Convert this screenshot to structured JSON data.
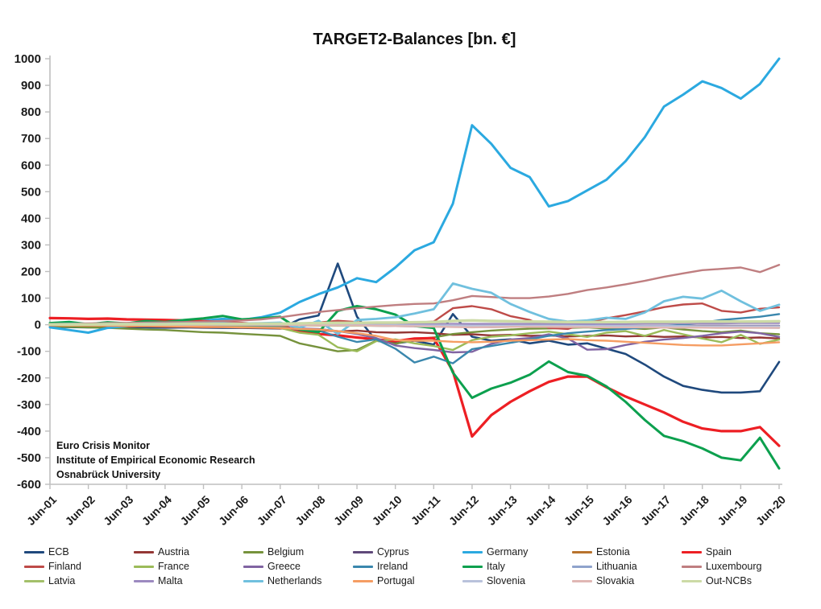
{
  "title": "TARGET2-Balances [bn. €]",
  "annotation": {
    "lines": [
      "Euro Crisis Monitor",
      "Institute of Empirical Economic Research",
      "Osnabrück University"
    ]
  },
  "axis": {
    "y_tick_labels": [
      "1000",
      "900",
      "800",
      "700",
      "600",
      "500",
      "400",
      "300",
      "200",
      "100",
      "0",
      "-100",
      "-200",
      "-300",
      "-400",
      "-500",
      "-600"
    ],
    "x_tick_labels": [
      "Jun-01",
      "Jun-02",
      "Jun-03",
      "Jun-04",
      "Jun-05",
      "Jun-06",
      "Jun-07",
      "Jun-08",
      "Jun-09",
      "Jun-10",
      "Jun-11",
      "Jun-12",
      "Jun-13",
      "Jun-14",
      "Jun-15",
      "Jun-16",
      "Jun-17",
      "Jun-18",
      "Jun-19",
      "Jun-20"
    ],
    "axis_color": "#bfbfbf",
    "label_color": "#1a1a1a"
  },
  "chart_data": {
    "type": "line",
    "title": "TARGET2-Balances [bn. €]",
    "ylabel": "",
    "xlabel": "",
    "ylim": [
      -600,
      1000
    ],
    "y_ticks": [
      1000,
      900,
      800,
      700,
      600,
      500,
      400,
      300,
      200,
      100,
      0,
      -100,
      -200,
      -300,
      -400,
      -500,
      -600
    ],
    "grid": false,
    "legend_position": "bottom, 7 columns x 3 rows",
    "x_note": "half-yearly points from Jun-2001 to Jun-2020; labeled ticks at every June",
    "x_tick_labels": [
      "Jun-01",
      "Jun-02",
      "Jun-03",
      "Jun-04",
      "Jun-05",
      "Jun-06",
      "Jun-07",
      "Jun-08",
      "Jun-09",
      "Jun-10",
      "Jun-11",
      "Jun-12",
      "Jun-13",
      "Jun-14",
      "Jun-15",
      "Jun-16",
      "Jun-17",
      "Jun-18",
      "Jun-19",
      "Jun-20"
    ],
    "series": [
      {
        "name": "ECB",
        "color": "#1F497D",
        "values": [
          -8,
          -9,
          -10,
          -9,
          -10,
          -10,
          -11,
          -10,
          -11,
          -12,
          -12,
          -13,
          -14,
          20,
          35,
          230,
          30,
          -60,
          -70,
          -60,
          -75,
          40,
          -45,
          -60,
          -55,
          -70,
          -60,
          -75,
          -70,
          -90,
          -110,
          -150,
          -195,
          -230,
          -245,
          -255,
          -255,
          -250,
          -140
        ]
      },
      {
        "name": "Austria",
        "color": "#943735",
        "values": [
          -4,
          -5,
          -6,
          -5,
          -7,
          -6,
          -8,
          -8,
          -10,
          -9,
          -11,
          -12,
          -14,
          -18,
          -20,
          -25,
          -22,
          -28,
          -30,
          -28,
          -32,
          -38,
          -36,
          -40,
          -38,
          -42,
          -40,
          -44,
          -42,
          -40,
          -44,
          -42,
          -46,
          -44,
          -48,
          -46,
          -50,
          -48,
          -52
        ]
      },
      {
        "name": "Belgium",
        "color": "#76923C",
        "values": [
          -6,
          -8,
          -10,
          -12,
          -15,
          -18,
          -20,
          -24,
          -28,
          -30,
          -34,
          -38,
          -42,
          -70,
          -85,
          -100,
          -95,
          -60,
          -72,
          -55,
          -48,
          -35,
          -28,
          -22,
          -18,
          -15,
          -14,
          -12,
          -10,
          -14,
          -12,
          -16,
          -10,
          -18,
          -24,
          -28,
          -22,
          -32,
          -36
        ]
      },
      {
        "name": "Cyprus",
        "color": "#5F497A",
        "values": [
          0,
          0,
          0,
          0,
          0,
          0,
          0,
          0,
          0,
          0,
          0,
          0,
          0,
          -1,
          -2,
          -3,
          -3,
          -4,
          -5,
          -6,
          -7,
          -8,
          -8,
          -9,
          -8,
          -7,
          -6,
          -5,
          -5,
          -4,
          -4,
          -4,
          -4,
          -4,
          -4,
          -4,
          -4,
          -4,
          -4
        ]
      },
      {
        "name": "Germany",
        "color": "#2BA9E0",
        "values": [
          -10,
          -20,
          -30,
          -12,
          -5,
          3,
          8,
          5,
          15,
          22,
          18,
          28,
          45,
          85,
          115,
          140,
          175,
          160,
          215,
          280,
          310,
          455,
          750,
          680,
          590,
          555,
          445,
          465,
          505,
          545,
          615,
          705,
          820,
          865,
          915,
          890,
          850,
          905,
          1000
        ]
      },
      {
        "name": "Estonia",
        "color": "#B8732D",
        "values": [
          0,
          0,
          0,
          0,
          -1,
          -1,
          -1,
          -1,
          -1,
          -2,
          -2,
          -2,
          -2,
          -2,
          -3,
          -3,
          -3,
          -3,
          -3,
          -4,
          -4,
          -4,
          -4,
          -4,
          -4,
          -4,
          -5,
          -5,
          -5,
          -5,
          -5,
          -6,
          -6,
          -6,
          -6,
          -6,
          -6,
          -7,
          -7
        ]
      },
      {
        "name": "Spain",
        "color": "#ED1F24",
        "values": [
          25,
          24,
          22,
          23,
          20,
          19,
          18,
          16,
          13,
          10,
          6,
          2,
          0,
          -25,
          -35,
          -40,
          -48,
          -55,
          -62,
          -52,
          -50,
          -175,
          -420,
          -340,
          -290,
          -250,
          -215,
          -195,
          -195,
          -235,
          -270,
          -300,
          -330,
          -365,
          -390,
          -400,
          -400,
          -385,
          -455
        ]
      },
      {
        "name": "Finland",
        "color": "#BE4B48",
        "values": [
          -3,
          -3,
          -4,
          -3,
          -4,
          -4,
          -5,
          -4,
          -5,
          -5,
          -6,
          -5,
          -6,
          5,
          8,
          15,
          10,
          5,
          2,
          8,
          12,
          62,
          70,
          58,
          32,
          18,
          -12,
          -16,
          8,
          24,
          36,
          50,
          66,
          76,
          80,
          52,
          46,
          60,
          65
        ]
      },
      {
        "name": "France",
        "color": "#9BBB59",
        "values": [
          -2,
          -3,
          -3,
          -4,
          -4,
          -5,
          -5,
          -6,
          -6,
          -8,
          -8,
          -10,
          -12,
          -30,
          -38,
          -85,
          -100,
          -62,
          -55,
          -70,
          -80,
          -95,
          -58,
          -45,
          -40,
          -32,
          -26,
          -36,
          -46,
          -30,
          -24,
          -42,
          -20,
          -36,
          -52,
          -66,
          -38,
          -72,
          -56
        ]
      },
      {
        "name": "Greece",
        "color": "#8064A2",
        "values": [
          -1,
          -2,
          -2,
          -3,
          -3,
          -4,
          -4,
          -5,
          -5,
          -6,
          -6,
          -8,
          -10,
          -14,
          -16,
          -24,
          -35,
          -50,
          -78,
          -88,
          -95,
          -104,
          -102,
          -72,
          -56,
          -50,
          -36,
          -52,
          -94,
          -92,
          -76,
          -64,
          -56,
          -50,
          -42,
          -32,
          -26,
          -32,
          -46
        ]
      },
      {
        "name": "Ireland",
        "color": "#3A87AD",
        "values": [
          -2,
          -2,
          -3,
          -3,
          -4,
          -4,
          -5,
          -5,
          -6,
          -6,
          -7,
          -8,
          -10,
          -18,
          -22,
          -45,
          -65,
          -55,
          -90,
          -142,
          -120,
          -145,
          -92,
          -80,
          -68,
          -55,
          -42,
          -32,
          -26,
          -20,
          -16,
          -10,
          -6,
          0,
          8,
          18,
          24,
          30,
          40
        ]
      },
      {
        "name": "Italy",
        "color": "#0CA04E",
        "values": [
          6,
          10,
          2,
          9,
          5,
          14,
          10,
          18,
          24,
          33,
          20,
          24,
          30,
          -18,
          -28,
          52,
          70,
          58,
          38,
          -5,
          -12,
          -180,
          -275,
          -240,
          -218,
          -188,
          -138,
          -178,
          -192,
          -232,
          -290,
          -358,
          -418,
          -438,
          -465,
          -500,
          -510,
          -425,
          -540
        ]
      },
      {
        "name": "Lithuania",
        "color": "#8FA3CC",
        "values": [
          0,
          0,
          0,
          0,
          0,
          0,
          0,
          0,
          0,
          0,
          0,
          0,
          0,
          0,
          -1,
          -1,
          -1,
          -1,
          -1,
          -1,
          -1,
          -1,
          -2,
          -2,
          -2,
          -2,
          -2,
          -2,
          -3,
          -4,
          -5,
          -6,
          -7,
          -8,
          -9,
          -10,
          -10,
          -11,
          -12
        ]
      },
      {
        "name": "Luxembourg",
        "color": "#BF7E80",
        "values": [
          3,
          4,
          5,
          6,
          7,
          8,
          9,
          10,
          12,
          14,
          16,
          20,
          28,
          38,
          48,
          55,
          62,
          68,
          74,
          78,
          80,
          92,
          108,
          104,
          100,
          100,
          106,
          116,
          130,
          140,
          152,
          165,
          180,
          193,
          205,
          210,
          215,
          198,
          225
        ]
      },
      {
        "name": "Latvia",
        "color": "#A3C06A",
        "values": [
          0,
          0,
          0,
          0,
          0,
          -1,
          -1,
          -1,
          -1,
          -1,
          -2,
          -2,
          -2,
          -3,
          -3,
          -4,
          -4,
          -4,
          -4,
          -5,
          -5,
          -5,
          -6,
          -6,
          -6,
          -6,
          -6,
          -7,
          -7,
          -7,
          -7,
          -7,
          -8,
          -8,
          -8,
          -8,
          -8,
          -8,
          -8
        ]
      },
      {
        "name": "Malta",
        "color": "#9C8AC0",
        "values": [
          0,
          0,
          0,
          0,
          0,
          0,
          0,
          0,
          0,
          0,
          0,
          0,
          0,
          0,
          1,
          1,
          1,
          1,
          2,
          2,
          2,
          3,
          3,
          3,
          3,
          3,
          4,
          4,
          4,
          4,
          4,
          5,
          5,
          5,
          5,
          5,
          6,
          6,
          6
        ]
      },
      {
        "name": "Netherlands",
        "color": "#70C0DE",
        "values": [
          2,
          3,
          2,
          3,
          3,
          4,
          4,
          5,
          5,
          6,
          5,
          6,
          8,
          -12,
          15,
          -35,
          18,
          22,
          28,
          42,
          58,
          155,
          135,
          120,
          78,
          48,
          22,
          12,
          16,
          26,
          22,
          46,
          88,
          105,
          98,
          128,
          88,
          52,
          75
        ]
      },
      {
        "name": "Portugal",
        "color": "#F59D63",
        "values": [
          -2,
          -3,
          -3,
          -4,
          -5,
          -5,
          -6,
          -7,
          -8,
          -9,
          -10,
          -11,
          -12,
          -16,
          -18,
          -24,
          -32,
          -42,
          -58,
          -60,
          -60,
          -64,
          -66,
          -64,
          -60,
          -58,
          -56,
          -54,
          -58,
          -60,
          -64,
          -68,
          -72,
          -76,
          -78,
          -78,
          -74,
          -70,
          -66
        ]
      },
      {
        "name": "Slovenia",
        "color": "#B9C2DB",
        "values": [
          0,
          0,
          0,
          0,
          0,
          0,
          0,
          0,
          0,
          0,
          0,
          0,
          0,
          -1,
          -1,
          -2,
          -2,
          -2,
          -2,
          -3,
          -3,
          -3,
          -4,
          -4,
          -4,
          -4,
          -4,
          -4,
          -5,
          -5,
          -5,
          -5,
          -5,
          -5,
          -6,
          -6,
          -6,
          -6,
          -6
        ]
      },
      {
        "name": "Slovakia",
        "color": "#E0B7B4",
        "values": [
          0,
          0,
          0,
          0,
          0,
          0,
          0,
          0,
          0,
          0,
          0,
          0,
          0,
          -1,
          -2,
          -3,
          -3,
          -4,
          -5,
          -6,
          -7,
          -9,
          -10,
          -9,
          -8,
          -8,
          -8,
          -9,
          -9,
          -10,
          -10,
          -10,
          -11,
          -11,
          -11,
          -12,
          -12,
          -12,
          -12
        ]
      },
      {
        "name": "Out-NCBs",
        "color": "#CCDAA6",
        "values": [
          1,
          1,
          1,
          2,
          2,
          2,
          2,
          3,
          3,
          3,
          3,
          4,
          4,
          5,
          6,
          7,
          7,
          8,
          8,
          9,
          10,
          14,
          16,
          14,
          13,
          12,
          11,
          10,
          10,
          10,
          10,
          11,
          11,
          11,
          12,
          12,
          12,
          12,
          13
        ]
      }
    ]
  }
}
